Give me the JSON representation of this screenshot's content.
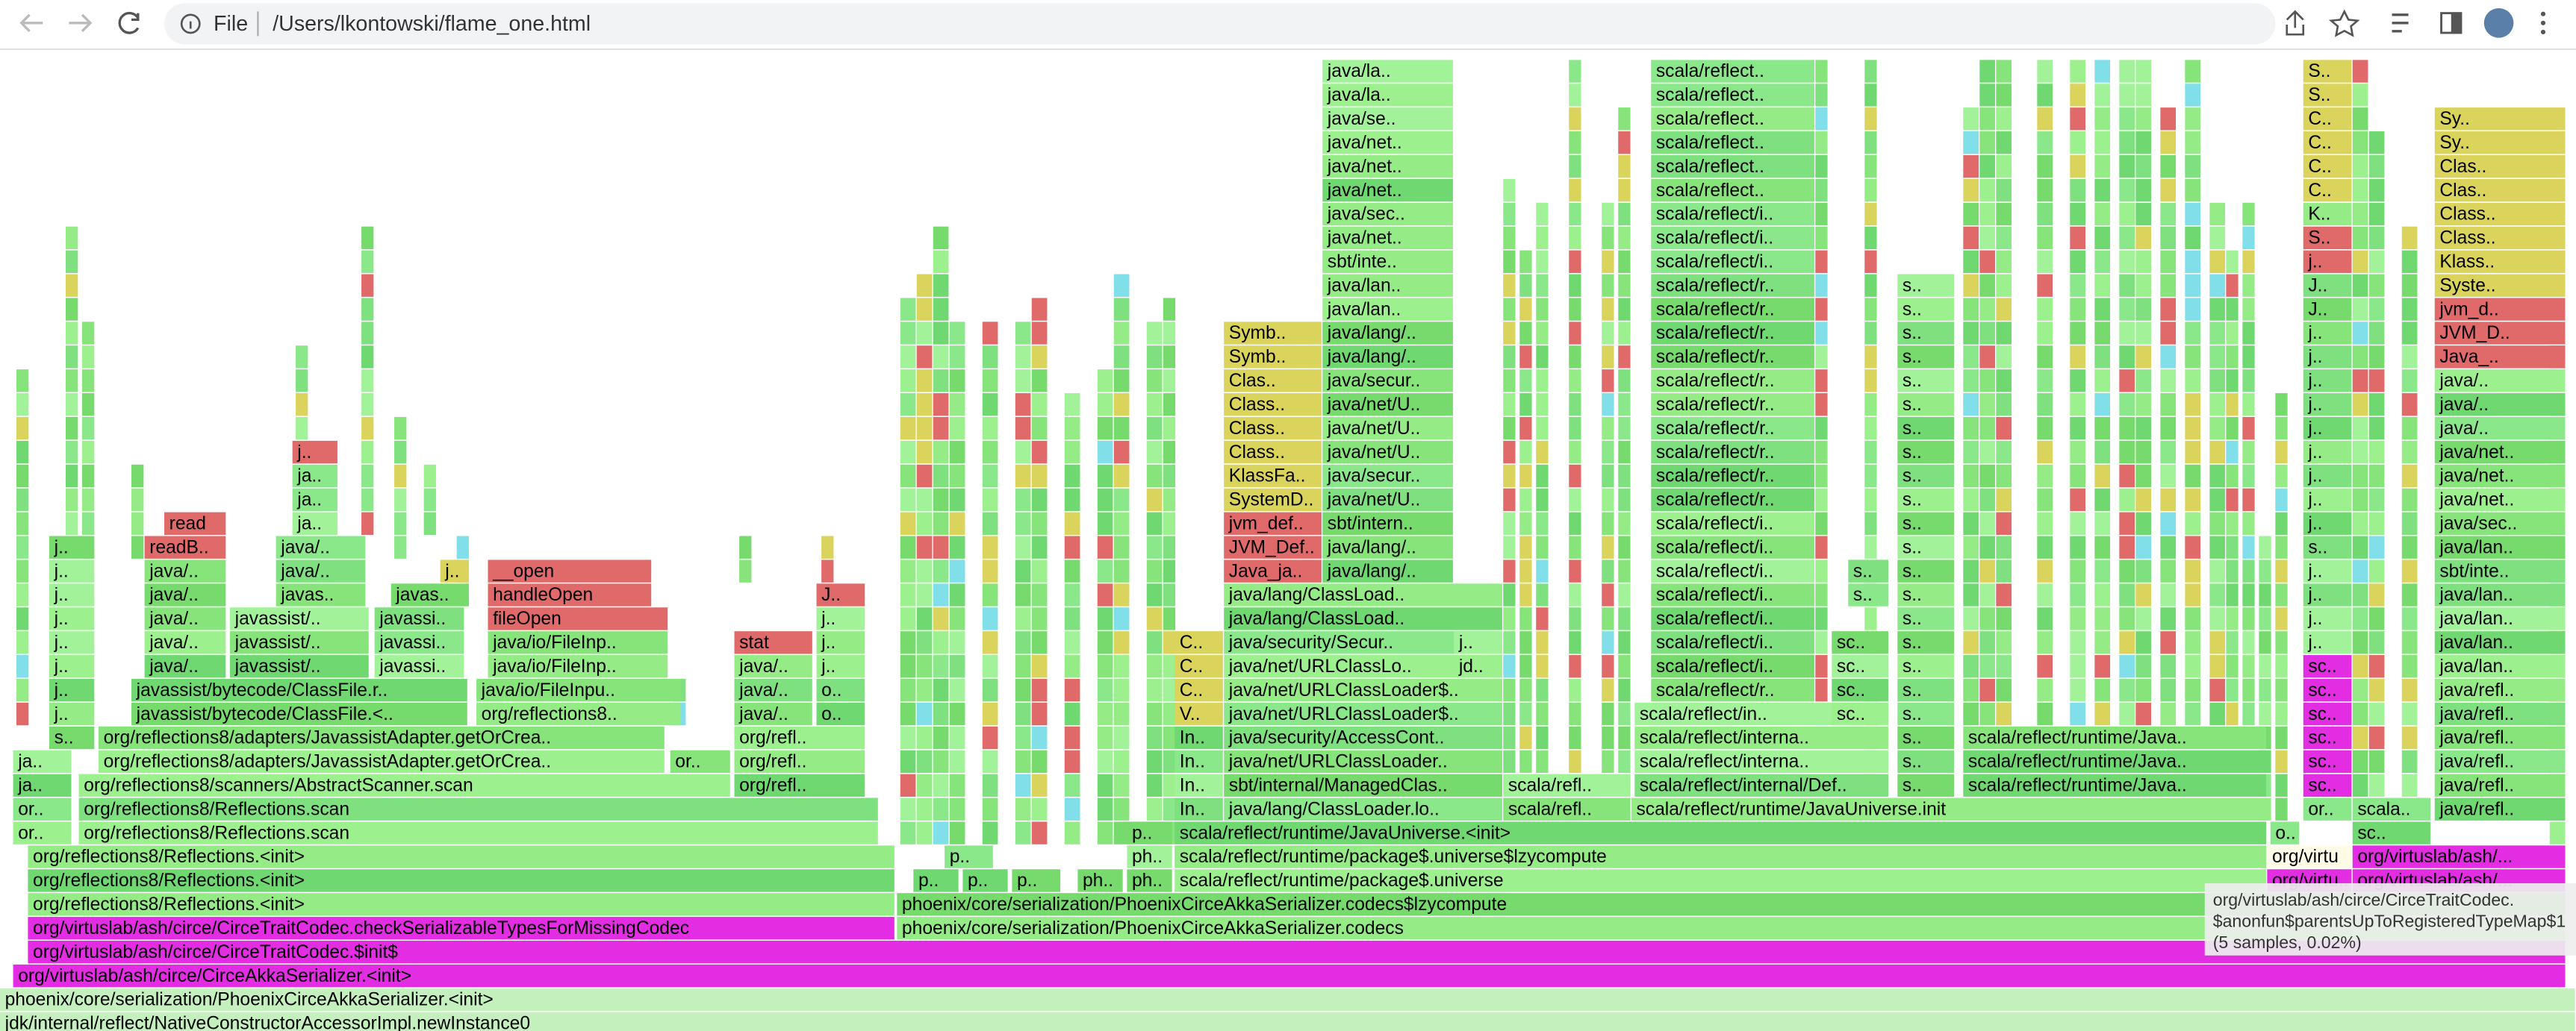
{
  "browser": {
    "scheme": "File",
    "url": "/Users/lkontowski/flame_one.html"
  },
  "flame": {
    "stacks": [
      [
        "jdk/internal/reflect/NativeConstructorAccessorImpl.newInstance0",
        "phoenix/core/serialization/PhoenixCirceAkkaSerializer.<init>"
      ],
      [
        "org/virtuslab/ash/circe/CirceAkkaSerializer.<init>"
      ],
      [
        "org/virtuslab/ash/circe/CirceTraitCodec.$init$"
      ],
      [
        "org/virtuslab/ash/circe/CirceTraitCodec.checkSerializableTypesForMissingCodec",
        "org/reflections8/Reflections.<init>",
        "org/reflections8/Reflections.<init>",
        "org/reflections8/Reflections.<init>"
      ],
      [
        "phoenix/core/serialization/PhoenixCirceAkkaSerializer.codecs",
        "phoenix/core/serialization/PhoenixCirceAkkaSerializer.codecs$lzycompute"
      ],
      [
        "scala/reflect/runtime/package$.universe",
        "scala/reflect/runtime/package$.universe$lzycompute",
        "scala/reflect/runtime/JavaUniverse.<init>"
      ],
      [
        "org/virtu..",
        "org/virtu"
      ],
      [
        "org/virtuslab/ash/...",
        "org/virtuslab/ash/..."
      ],
      [
        "p.."
      ],
      [
        "p.."
      ],
      [
        "p.."
      ],
      [
        "ph.."
      ],
      [
        "ph.."
      ],
      [
        "p.."
      ],
      [
        "ph..",
        "p.."
      ],
      [
        "or..",
        "or..",
        "ja..",
        "ja.."
      ],
      [
        "s..",
        "j..",
        "j..",
        "j..",
        "j..",
        "j..",
        "j..",
        "j..",
        "j.."
      ],
      [
        "org/reflections8/Reflections.scan",
        "org/reflections8/Reflections.scan"
      ],
      [
        "org/reflections8/scanners/AbstractScanner.scan"
      ],
      [
        "org/reflections8/adapters/JavassistAdapter.getOrCrea..",
        "org/reflections8/adapters/JavassistAdapter.getOrCrea.."
      ],
      [
        "or.."
      ],
      [
        "org/refl..",
        "org/refl..",
        "org/refl.."
      ],
      [
        "java/..",
        "java/..",
        "java/..",
        "stat"
      ],
      [
        "o..",
        "o..",
        "j..",
        "j..",
        "j..",
        "J.."
      ],
      [
        "javassist/bytecode/ClassFile.<..",
        "javassist/bytecode/ClassFile.r.."
      ],
      [
        "java/..",
        "java/..",
        "java/..",
        "java/..",
        "java/..",
        "readB.."
      ],
      [
        "read"
      ],
      [
        "javassist/..",
        "javassist/..",
        "javassist/.."
      ],
      [
        "javas..",
        "java/..",
        "java/.."
      ],
      [
        "ja..",
        "ja..",
        "ja..",
        "j.."
      ],
      [
        "javassi..",
        "javassi..",
        "javassi.."
      ],
      [
        "javas.."
      ],
      [
        "j.."
      ],
      [
        "org/reflections8..",
        "java/io/FileInpu.."
      ],
      [
        "java/io/FileInp..",
        "java/io/FileInp..",
        "fileOpen"
      ],
      [
        "handleOpen",
        "__open"
      ],
      [
        "In..",
        "In..",
        "In..",
        "In..",
        "V..",
        "C..",
        "C..",
        "C.."
      ],
      [
        "java/lang/ClassLoader.lo..",
        "sbt/internal/ManagedClas..",
        "java/net/URLClassLoader..",
        "java/security/AccessCont..",
        "java/net/URLClassLoader$..",
        "java/net/URLClassLoader$..",
        "java/net/URLClassLo..",
        "java/security/Secur..",
        "java/lang/ClassLoad..",
        "java/lang/ClassLoad.."
      ],
      [
        "jd..",
        "j.."
      ],
      [
        "Java_ja..",
        "JVM_Def..",
        "jvm_def..",
        "SystemD..",
        "KlassFa..",
        "Class..",
        "Class..",
        "Class..",
        "Clas..",
        "Symb..",
        "Symb.."
      ],
      [
        "java/lang/..",
        "java/lang/..",
        "sbt/intern..",
        "java/net/U..",
        "java/secur..",
        "java/net/U..",
        "java/net/U..",
        "java/net/U..",
        "java/secur..",
        "java/lang/..",
        "java/lang/..",
        "java/lan..",
        "java/lan..",
        "sbt/inte..",
        "java/net..",
        "java/sec..",
        "java/net..",
        "java/net..",
        "java/net..",
        "java/se..",
        "java/la..",
        "java/la.."
      ],
      [
        "scala/refl..",
        "scala/refl.."
      ],
      [
        "scala/reflect/runtime/JavaUniverse.init"
      ],
      [
        "scala/reflect/internal/Def..",
        "scala/reflect/interna..",
        "scala/reflect/interna..",
        "scala/reflect/in.."
      ],
      [
        "scala/reflect/r..",
        "scala/reflect/i..",
        "scala/reflect/i..",
        "scala/reflect/i..",
        "scala/reflect/i..",
        "scala/reflect/i..",
        "scala/reflect/i..",
        "scala/reflect/i..",
        "scala/reflect/r..",
        "scala/reflect/r..",
        "scala/reflect/r..",
        "scala/reflect/r..",
        "scala/reflect/r..",
        "scala/reflect/r..",
        "scala/reflect/r..",
        "scala/reflect/r..",
        "scala/reflect/r..",
        "scala/reflect/r..",
        "scala/reflect/i..",
        "scala/reflect/i..",
        "scala/reflect/i..",
        "scala/reflect..",
        "scala/reflect..",
        "scala/reflect..",
        "scala/reflect..",
        "scala/reflect..",
        "scala/reflect.."
      ],
      [
        "sc..",
        "sc..",
        "sc..",
        "sc.."
      ],
      [
        "s..",
        "s.."
      ],
      [
        "s..",
        "s..",
        "s..",
        "s..",
        "s..",
        "s..",
        "s..",
        "s..",
        "s..",
        "s..",
        "s..",
        "s..",
        "s..",
        "s..",
        "s..",
        "s..",
        "s..",
        "s..",
        "s..",
        "s..",
        "s..",
        "s.."
      ],
      [
        "scala/reflect/runtime/Java..",
        "scala/reflect/runtime/Java..",
        "scala/reflect/runtime/Java.."
      ],
      [
        "o.."
      ],
      [
        "or..",
        "sc..",
        "sc..",
        "sc..",
        "sc..",
        "sc..",
        "sc..",
        "j..",
        "j..",
        "j..",
        "j..",
        "s..",
        "j..",
        "j..",
        "j..",
        "j..",
        "j..",
        "j..",
        "j..",
        "j..",
        "j..",
        "J..",
        "J..",
        "j..",
        "S..",
        "K..",
        "C..",
        "C..",
        "C..",
        "C..",
        "S..",
        "S.."
      ],
      [
        "sc..",
        "scala.."
      ],
      [
        "java/refl..",
        "java/refl..",
        "java/refl..",
        "java/refl..",
        "java/refl..",
        "java/refl..",
        "java/lan..",
        "java/lan..",
        "java/lan..",
        "java/lan..",
        "sbt/inte..",
        "java/lan..",
        "java/sec..",
        "java/net..",
        "java/net..",
        "java/net..",
        "java/..",
        "java/..",
        "java/..",
        "Java_..",
        "JVM_D..",
        "jvm_d..",
        "Syste..",
        "Klass..",
        "Class..",
        "Class..",
        "Clas..",
        "Clas..",
        "Sy..",
        "Sy.."
      ]
    ]
  },
  "tooltip": {
    "lines": [
      "org/virtuslab/ash/circe/CirceTraitCodec.",
      "$anonfun$parentsUpToRegisteredTypeMap$1",
      "(5 samples, 0.02%)"
    ]
  }
}
